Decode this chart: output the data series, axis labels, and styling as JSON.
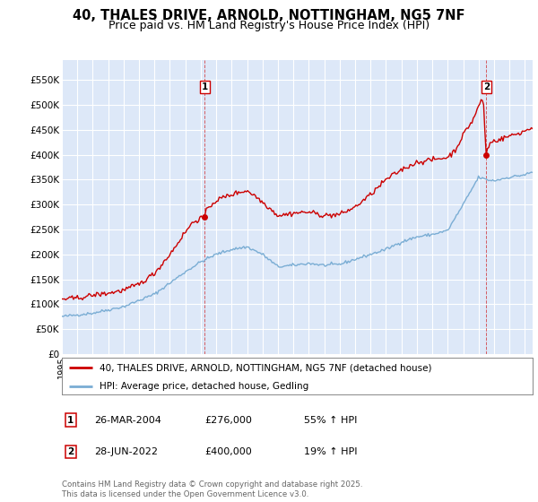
{
  "title": "40, THALES DRIVE, ARNOLD, NOTTINGHAM, NG5 7NF",
  "subtitle": "Price paid vs. HM Land Registry's House Price Index (HPI)",
  "yticks": [
    0,
    50000,
    100000,
    150000,
    200000,
    250000,
    300000,
    350000,
    400000,
    450000,
    500000,
    550000
  ],
  "ytick_labels": [
    "£0",
    "£50K",
    "£100K",
    "£150K",
    "£200K",
    "£250K",
    "£300K",
    "£350K",
    "£400K",
    "£450K",
    "£500K",
    "£550K"
  ],
  "ylim": [
    0,
    590000
  ],
  "xlim_start": 1995.0,
  "xlim_end": 2025.5,
  "legend_line1": "40, THALES DRIVE, ARNOLD, NOTTINGHAM, NG5 7NF (detached house)",
  "legend_line2": "HPI: Average price, detached house, Gedling",
  "line1_color": "#cc0000",
  "line2_color": "#7aadd4",
  "annotation1_label": "1",
  "annotation1_date": "26-MAR-2004",
  "annotation1_price": "£276,000",
  "annotation1_hpi": "55% ↑ HPI",
  "annotation2_label": "2",
  "annotation2_date": "28-JUN-2022",
  "annotation2_price": "£400,000",
  "annotation2_hpi": "19% ↑ HPI",
  "footnote": "Contains HM Land Registry data © Crown copyright and database right 2025.\nThis data is licensed under the Open Government Licence v3.0.",
  "background_color": "#ffffff",
  "plot_bg_color": "#dde8f8",
  "grid_color": "#ffffff",
  "title_fontsize": 10.5,
  "subtitle_fontsize": 9
}
